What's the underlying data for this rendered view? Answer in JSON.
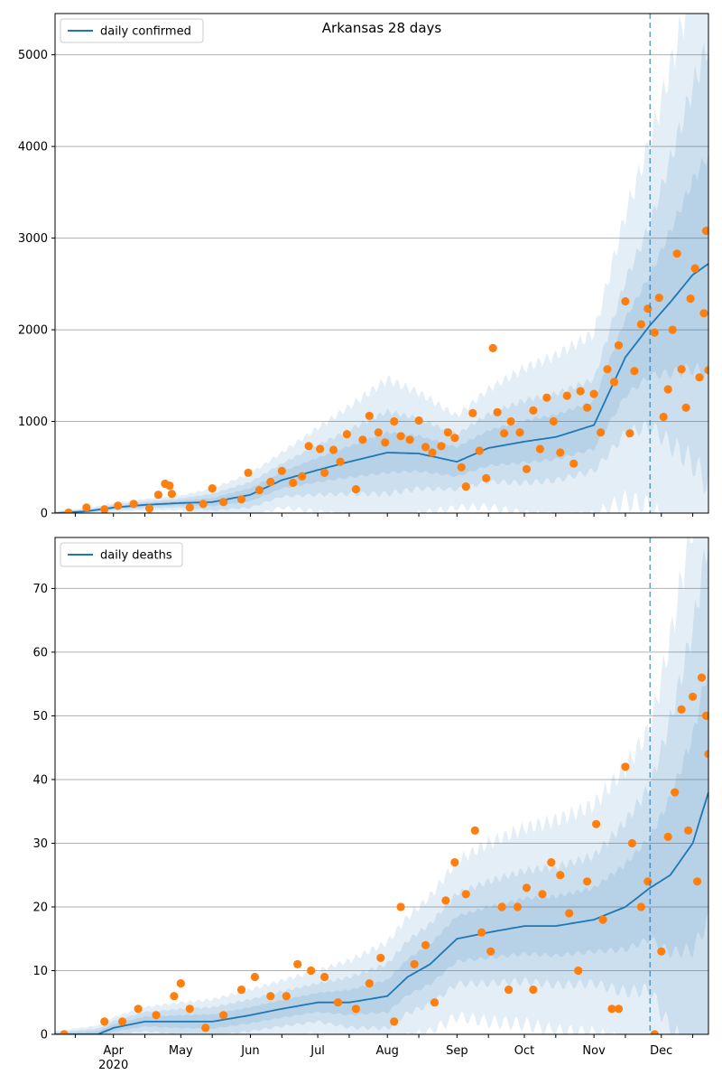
{
  "chart_data": [
    {
      "type": "line",
      "title": "Arkansas 28 days",
      "xlabel": "",
      "ylabel": "",
      "series": [
        {
          "name": "daily confirmed",
          "kind": "line",
          "color": "#1f77b4",
          "key": "fit"
        },
        {
          "kind": "scatter",
          "color": "#ff7f0e",
          "key": "obs"
        },
        {
          "kind": "bands",
          "color": "#1f77b4",
          "key": "bands"
        }
      ],
      "x_domain": [
        "2020-03-06",
        "2020-12-22"
      ],
      "ylim": [
        0,
        5450
      ],
      "yticks": [
        0,
        1000,
        2000,
        3000,
        4000,
        5000
      ],
      "forecast_start": "2020-11-26",
      "grid": "horizontal",
      "legend": "top-left",
      "fit_anchors": [
        [
          "2020-03-06",
          0
        ],
        [
          "2020-03-20",
          20
        ],
        [
          "2020-04-01",
          60
        ],
        [
          "2020-04-15",
          90
        ],
        [
          "2020-05-01",
          110
        ],
        [
          "2020-05-15",
          120
        ],
        [
          "2020-06-01",
          200
        ],
        [
          "2020-06-15",
          360
        ],
        [
          "2020-07-01",
          470
        ],
        [
          "2020-07-15",
          560
        ],
        [
          "2020-08-01",
          660
        ],
        [
          "2020-08-15",
          650
        ],
        [
          "2020-09-01",
          560
        ],
        [
          "2020-09-15",
          710
        ],
        [
          "2020-10-01",
          780
        ],
        [
          "2020-10-15",
          830
        ],
        [
          "2020-11-01",
          960
        ],
        [
          "2020-11-15",
          1700
        ],
        [
          "2020-11-26",
          2050
        ],
        [
          "2020-12-05",
          2300
        ],
        [
          "2020-12-15",
          2600
        ],
        [
          "2020-12-22",
          2720
        ]
      ],
      "band_half_widths": {
        "outer": [
          [
            "2020-03-06",
            20
          ],
          [
            "2020-05-01",
            80
          ],
          [
            "2020-06-15",
            300
          ],
          [
            "2020-07-15",
            600
          ],
          [
            "2020-08-01",
            800
          ],
          [
            "2020-09-01",
            500
          ],
          [
            "2020-10-01",
            800
          ],
          [
            "2020-11-01",
            1000
          ],
          [
            "2020-11-26",
            2000
          ],
          [
            "2020-12-22",
            3600
          ]
        ],
        "mid": [
          [
            "2020-03-06",
            10
          ],
          [
            "2020-05-01",
            50
          ],
          [
            "2020-06-15",
            180
          ],
          [
            "2020-07-15",
            350
          ],
          [
            "2020-08-01",
            450
          ],
          [
            "2020-09-01",
            300
          ],
          [
            "2020-10-01",
            450
          ],
          [
            "2020-11-01",
            500
          ],
          [
            "2020-11-26",
            1100
          ],
          [
            "2020-12-22",
            2400
          ]
        ],
        "inner": [
          [
            "2020-03-06",
            5
          ],
          [
            "2020-05-01",
            25
          ],
          [
            "2020-06-15",
            90
          ],
          [
            "2020-07-15",
            170
          ],
          [
            "2020-08-01",
            220
          ],
          [
            "2020-09-01",
            160
          ],
          [
            "2020-10-01",
            230
          ],
          [
            "2020-11-01",
            260
          ],
          [
            "2020-11-26",
            550
          ],
          [
            "2020-12-22",
            1200
          ]
        ]
      },
      "observed": [
        [
          "2020-03-12",
          5
        ],
        [
          "2020-03-20",
          60
        ],
        [
          "2020-03-28",
          40
        ],
        [
          "2020-04-03",
          80
        ],
        [
          "2020-04-10",
          100
        ],
        [
          "2020-04-17",
          50
        ],
        [
          "2020-04-21",
          200
        ],
        [
          "2020-04-24",
          320
        ],
        [
          "2020-04-26",
          300
        ],
        [
          "2020-04-27",
          210
        ],
        [
          "2020-05-05",
          60
        ],
        [
          "2020-05-11",
          100
        ],
        [
          "2020-05-15",
          270
        ],
        [
          "2020-05-20",
          120
        ],
        [
          "2020-05-28",
          150
        ],
        [
          "2020-05-31",
          440
        ],
        [
          "2020-06-05",
          250
        ],
        [
          "2020-06-10",
          340
        ],
        [
          "2020-06-15",
          460
        ],
        [
          "2020-06-20",
          330
        ],
        [
          "2020-06-24",
          400
        ],
        [
          "2020-06-27",
          730
        ],
        [
          "2020-07-02",
          700
        ],
        [
          "2020-07-04",
          440
        ],
        [
          "2020-07-08",
          690
        ],
        [
          "2020-07-11",
          560
        ],
        [
          "2020-07-14",
          860
        ],
        [
          "2020-07-18",
          260
        ],
        [
          "2020-07-21",
          800
        ],
        [
          "2020-07-24",
          1060
        ],
        [
          "2020-07-28",
          880
        ],
        [
          "2020-07-31",
          770
        ],
        [
          "2020-08-04",
          1000
        ],
        [
          "2020-08-07",
          840
        ],
        [
          "2020-08-11",
          800
        ],
        [
          "2020-08-15",
          1010
        ],
        [
          "2020-08-18",
          720
        ],
        [
          "2020-08-21",
          660
        ],
        [
          "2020-08-25",
          730
        ],
        [
          "2020-08-28",
          880
        ],
        [
          "2020-08-31",
          820
        ],
        [
          "2020-09-03",
          500
        ],
        [
          "2020-09-05",
          290
        ],
        [
          "2020-09-08",
          1090
        ],
        [
          "2020-09-11",
          680
        ],
        [
          "2020-09-14",
          380
        ],
        [
          "2020-09-17",
          1800
        ],
        [
          "2020-09-19",
          1100
        ],
        [
          "2020-09-22",
          870
        ],
        [
          "2020-09-25",
          1000
        ],
        [
          "2020-09-29",
          880
        ],
        [
          "2020-10-02",
          480
        ],
        [
          "2020-10-05",
          1120
        ],
        [
          "2020-10-08",
          700
        ],
        [
          "2020-10-11",
          1260
        ],
        [
          "2020-10-14",
          1000
        ],
        [
          "2020-10-17",
          660
        ],
        [
          "2020-10-20",
          1280
        ],
        [
          "2020-10-23",
          540
        ],
        [
          "2020-10-26",
          1330
        ],
        [
          "2020-10-29",
          1150
        ],
        [
          "2020-11-01",
          1300
        ],
        [
          "2020-11-04",
          880
        ],
        [
          "2020-11-07",
          1570
        ],
        [
          "2020-11-10",
          1430
        ],
        [
          "2020-11-12",
          1830
        ],
        [
          "2020-11-15",
          2310
        ],
        [
          "2020-11-17",
          870
        ],
        [
          "2020-11-19",
          1550
        ],
        [
          "2020-11-22",
          2060
        ],
        [
          "2020-11-25",
          2230
        ],
        [
          "2020-11-28",
          1970
        ],
        [
          "2020-11-30",
          2350
        ],
        [
          "2020-12-02",
          1050
        ],
        [
          "2020-12-04",
          1350
        ],
        [
          "2020-12-06",
          2000
        ],
        [
          "2020-12-08",
          2830
        ],
        [
          "2020-12-10",
          1570
        ],
        [
          "2020-12-12",
          1150
        ],
        [
          "2020-12-14",
          2340
        ],
        [
          "2020-12-16",
          2670
        ],
        [
          "2020-12-18",
          1480
        ],
        [
          "2020-12-20",
          2180
        ],
        [
          "2020-12-21",
          3080
        ],
        [
          "2020-12-22",
          1560
        ]
      ]
    },
    {
      "type": "line",
      "title": "",
      "xlabel": "",
      "ylabel": "",
      "series": [
        {
          "name": "daily deaths",
          "kind": "line",
          "color": "#1f77b4",
          "key": "fit"
        },
        {
          "kind": "scatter",
          "color": "#ff7f0e",
          "key": "obs"
        },
        {
          "kind": "bands",
          "color": "#1f77b4",
          "key": "bands"
        }
      ],
      "x_domain": [
        "2020-03-06",
        "2020-12-22"
      ],
      "ylim": [
        0,
        78
      ],
      "yticks": [
        0,
        10,
        20,
        30,
        40,
        50,
        60,
        70
      ],
      "forecast_start": "2020-11-26",
      "grid": "horizontal",
      "legend": "top-left",
      "fit_anchors": [
        [
          "2020-03-06",
          0
        ],
        [
          "2020-03-25",
          0
        ],
        [
          "2020-04-01",
          1
        ],
        [
          "2020-04-15",
          2
        ],
        [
          "2020-05-01",
          2
        ],
        [
          "2020-05-15",
          2
        ],
        [
          "2020-06-01",
          3
        ],
        [
          "2020-06-15",
          4
        ],
        [
          "2020-07-01",
          5
        ],
        [
          "2020-07-15",
          5
        ],
        [
          "2020-08-01",
          6
        ],
        [
          "2020-08-10",
          9
        ],
        [
          "2020-08-20",
          11
        ],
        [
          "2020-09-01",
          15
        ],
        [
          "2020-09-15",
          16
        ],
        [
          "2020-10-01",
          17
        ],
        [
          "2020-10-15",
          17
        ],
        [
          "2020-11-01",
          18
        ],
        [
          "2020-11-15",
          20
        ],
        [
          "2020-11-26",
          23
        ],
        [
          "2020-12-05",
          25
        ],
        [
          "2020-12-15",
          30
        ],
        [
          "2020-12-22",
          38
        ]
      ],
      "band_half_widths": {
        "outer": [
          [
            "2020-03-06",
            0.5
          ],
          [
            "2020-05-01",
            3
          ],
          [
            "2020-07-01",
            5
          ],
          [
            "2020-08-15",
            10
          ],
          [
            "2020-09-15",
            14
          ],
          [
            "2020-11-01",
            18
          ],
          [
            "2020-11-26",
            25
          ],
          [
            "2020-12-22",
            60
          ]
        ],
        "mid": [
          [
            "2020-03-06",
            0.3
          ],
          [
            "2020-05-01",
            2
          ],
          [
            "2020-07-01",
            3
          ],
          [
            "2020-08-15",
            6
          ],
          [
            "2020-09-15",
            8
          ],
          [
            "2020-11-01",
            10
          ],
          [
            "2020-11-26",
            16
          ],
          [
            "2020-12-22",
            40
          ]
        ],
        "inner": [
          [
            "2020-03-06",
            0.2
          ],
          [
            "2020-05-01",
            1
          ],
          [
            "2020-07-01",
            1.5
          ],
          [
            "2020-08-15",
            3
          ],
          [
            "2020-09-15",
            4
          ],
          [
            "2020-11-01",
            5
          ],
          [
            "2020-11-26",
            8
          ],
          [
            "2020-12-22",
            20
          ]
        ]
      },
      "observed": [
        [
          "2020-03-10",
          0
        ],
        [
          "2020-03-28",
          2
        ],
        [
          "2020-04-05",
          2
        ],
        [
          "2020-04-12",
          4
        ],
        [
          "2020-04-20",
          3
        ],
        [
          "2020-04-28",
          6
        ],
        [
          "2020-05-01",
          8
        ],
        [
          "2020-05-05",
          4
        ],
        [
          "2020-05-12",
          1
        ],
        [
          "2020-05-20",
          3
        ],
        [
          "2020-05-28",
          7
        ],
        [
          "2020-06-03",
          9
        ],
        [
          "2020-06-10",
          6
        ],
        [
          "2020-06-17",
          6
        ],
        [
          "2020-06-22",
          11
        ],
        [
          "2020-06-28",
          10
        ],
        [
          "2020-07-04",
          9
        ],
        [
          "2020-07-10",
          5
        ],
        [
          "2020-07-18",
          4
        ],
        [
          "2020-07-24",
          8
        ],
        [
          "2020-07-29",
          12
        ],
        [
          "2020-08-04",
          2
        ],
        [
          "2020-08-07",
          20
        ],
        [
          "2020-08-13",
          11
        ],
        [
          "2020-08-18",
          14
        ],
        [
          "2020-08-22",
          5
        ],
        [
          "2020-08-27",
          21
        ],
        [
          "2020-08-31",
          27
        ],
        [
          "2020-09-05",
          22
        ],
        [
          "2020-09-09",
          32
        ],
        [
          "2020-09-12",
          16
        ],
        [
          "2020-09-16",
          13
        ],
        [
          "2020-09-21",
          20
        ],
        [
          "2020-09-24",
          7
        ],
        [
          "2020-09-28",
          20
        ],
        [
          "2020-10-02",
          23
        ],
        [
          "2020-10-05",
          7
        ],
        [
          "2020-10-09",
          22
        ],
        [
          "2020-10-13",
          27
        ],
        [
          "2020-10-17",
          25
        ],
        [
          "2020-10-21",
          19
        ],
        [
          "2020-10-25",
          10
        ],
        [
          "2020-10-29",
          24
        ],
        [
          "2020-11-02",
          33
        ],
        [
          "2020-11-05",
          18
        ],
        [
          "2020-11-09",
          4
        ],
        [
          "2020-11-12",
          4
        ],
        [
          "2020-11-15",
          42
        ],
        [
          "2020-11-18",
          30
        ],
        [
          "2020-11-22",
          20
        ],
        [
          "2020-11-25",
          24
        ],
        [
          "2020-11-28",
          0
        ],
        [
          "2020-12-01",
          13
        ],
        [
          "2020-12-04",
          31
        ],
        [
          "2020-12-07",
          38
        ],
        [
          "2020-12-10",
          51
        ],
        [
          "2020-12-13",
          32
        ],
        [
          "2020-12-15",
          53
        ],
        [
          "2020-12-17",
          24
        ],
        [
          "2020-12-19",
          56
        ],
        [
          "2020-12-21",
          50
        ],
        [
          "2020-12-22",
          44
        ]
      ]
    }
  ],
  "x_tick_labels": [
    {
      "date": "2020-04-01",
      "label": "Apr",
      "sublabel": "2020"
    },
    {
      "date": "2020-05-01",
      "label": "May"
    },
    {
      "date": "2020-06-01",
      "label": "Jun"
    },
    {
      "date": "2020-07-01",
      "label": "Jul"
    },
    {
      "date": "2020-08-01",
      "label": "Aug"
    },
    {
      "date": "2020-09-01",
      "label": "Sep"
    },
    {
      "date": "2020-10-01",
      "label": "Oct"
    },
    {
      "date": "2020-11-01",
      "label": "Nov"
    },
    {
      "date": "2020-12-01",
      "label": "Dec"
    }
  ],
  "x_minor_ticks": [
    "2020-03-15",
    "2020-04-15",
    "2020-05-15",
    "2020-06-15",
    "2020-07-15",
    "2020-08-15",
    "2020-09-15",
    "2020-10-15",
    "2020-11-15",
    "2020-12-15"
  ],
  "colors": {
    "line": "#1f77b4",
    "points": "#ff7f0e",
    "band": "#1f77b4",
    "grid": "#b0b0b0"
  }
}
